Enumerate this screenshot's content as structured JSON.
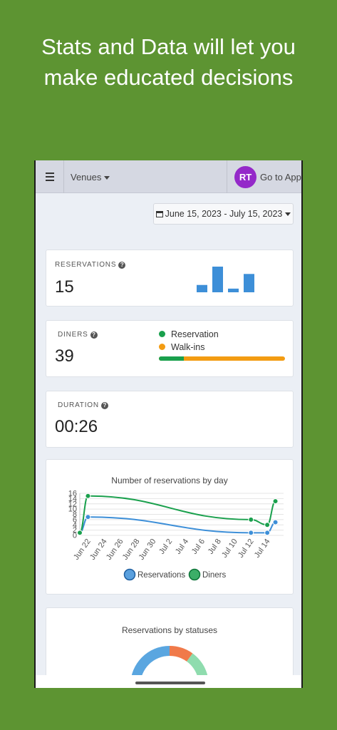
{
  "headline": {
    "line1": "Stats and Data will let you",
    "line2": "make educated decisions"
  },
  "topbar": {
    "venues_label": "Venues",
    "avatar_initials": "RT",
    "goto_label": "Go to App"
  },
  "date_range": {
    "label": "June 15, 2023 - July 15, 2023"
  },
  "reservations_card": {
    "label": "RESERVATIONS",
    "value": "15",
    "spark_values": [
      2,
      7,
      1,
      5
    ],
    "spark_color": "#3d8fd8"
  },
  "diners_card": {
    "label": "DINERS",
    "value": "39",
    "legend": [
      {
        "name": "Reservation",
        "color": "#1aa04d"
      },
      {
        "name": "Walk-ins",
        "color": "#f39c12"
      }
    ],
    "reservation_fraction": 0.2
  },
  "duration_card": {
    "label": "DURATION",
    "value": "00:26"
  },
  "chart_data": {
    "type": "line",
    "title": "Number of reservations by day",
    "x_ticks": [
      "Jun 22",
      "Jun 24",
      "Jun 26",
      "Jun 28",
      "Jun 30",
      "Jul 2",
      "Jul 4",
      "Jul 6",
      "Jul 8",
      "Jul 10",
      "Jul 12",
      "Jul 14"
    ],
    "y_ticks": [
      0,
      2,
      4,
      6,
      8,
      10,
      12,
      14,
      16
    ],
    "ylim": [
      0,
      16
    ],
    "xlim": [
      "2023-06-21",
      "2023-07-16"
    ],
    "series": [
      {
        "name": "Reservations",
        "color": "#3d8fd8",
        "points": [
          [
            "2023-06-21",
            1
          ],
          [
            "2023-06-22",
            7
          ],
          [
            "2023-07-12",
            1
          ],
          [
            "2023-07-14",
            1
          ],
          [
            "2023-07-15",
            5
          ]
        ]
      },
      {
        "name": "Diners",
        "color": "#1aa04d",
        "points": [
          [
            "2023-06-21",
            1
          ],
          [
            "2023-06-22",
            15
          ],
          [
            "2023-07-12",
            6
          ],
          [
            "2023-07-14",
            4
          ],
          [
            "2023-07-15",
            13
          ]
        ]
      }
    ],
    "legend_position": "bottom",
    "grid": true
  },
  "status_chart": {
    "title": "Reservations by statuses",
    "segments": [
      {
        "color": "#5aa6e0",
        "value": 25
      },
      {
        "color": "#f07a4a",
        "value": 10
      },
      {
        "color": "#8fdcae",
        "value": 65
      }
    ]
  }
}
